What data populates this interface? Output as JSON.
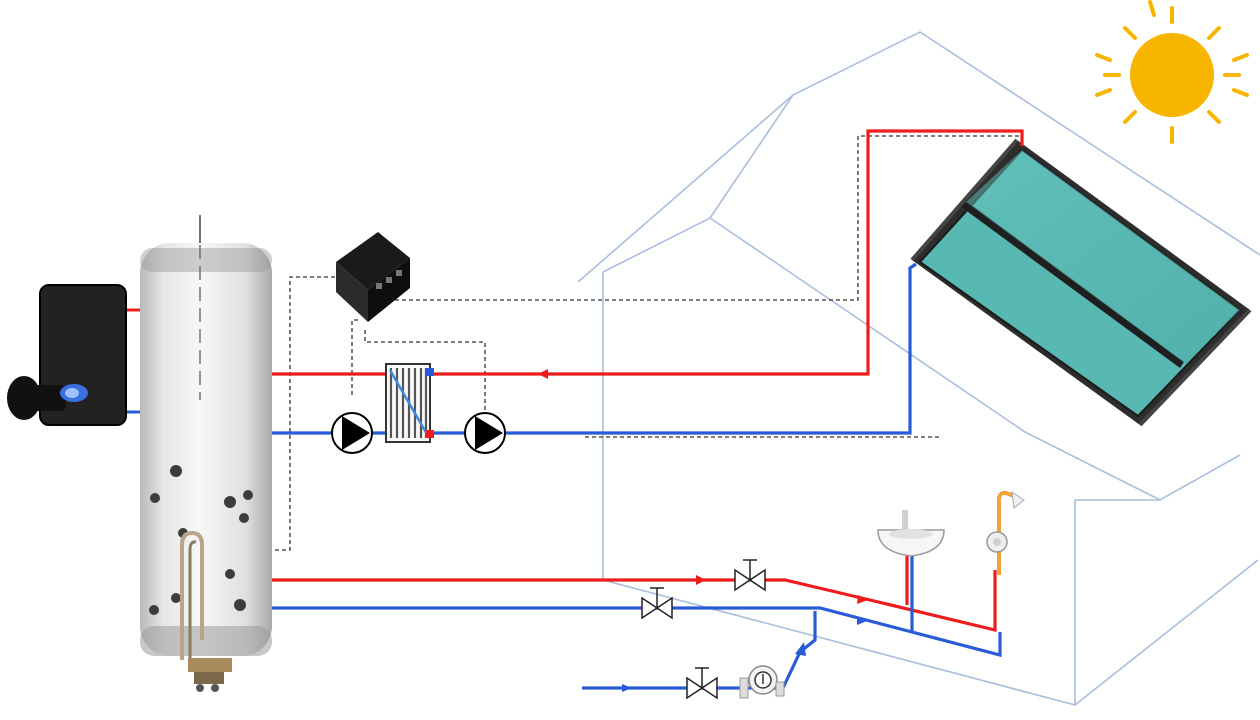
{
  "diagram": {
    "components": [
      "sun-icon",
      "solar-collector-panel",
      "house-outline",
      "storage-tank",
      "boiler-burner",
      "electric-heating-element",
      "solar-controller",
      "plate-heat-exchanger",
      "primary-circulation-pump",
      "secondary-circulation-pump",
      "wash-basin",
      "shower-head",
      "hot-water-valve",
      "cold-water-valve",
      "inlet-valve",
      "water-meter"
    ],
    "colors": {
      "hot_pipe": "#ee1c1c",
      "cold_pipe": "#2a5bd7",
      "house_line": "#a9bfdc",
      "collector_glass": "#5bbcb6",
      "sun": "#f7b500",
      "control_wire": "#333333"
    }
  }
}
